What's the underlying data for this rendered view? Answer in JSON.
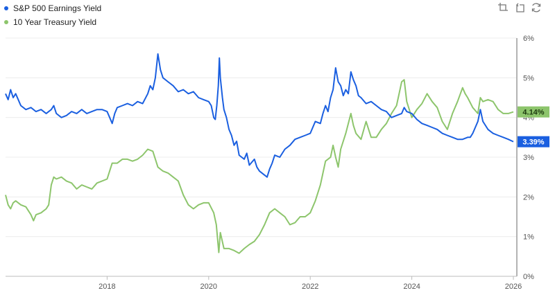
{
  "legend": {
    "items": [
      {
        "label": "S&P 500 Earnings Yield",
        "color": "#1a5fe0"
      },
      {
        "label": "10 Year Treasury Yield",
        "color": "#8dc56c"
      }
    ]
  },
  "toolbar": {
    "icons": [
      "zoom-in-icon",
      "zoom-reset-icon",
      "refresh-icon"
    ]
  },
  "badges": {
    "treasury": {
      "text": "4.14%",
      "bg": "#8dc56c",
      "fg": "#1d3a10"
    },
    "earnings": {
      "text": "3.39%",
      "bg": "#1a5fe0",
      "fg": "#ffffff"
    }
  },
  "chart_data": {
    "type": "line",
    "title": "",
    "xlabel": "",
    "ylabel": "",
    "x_ticks": [
      "2018",
      "2020",
      "2022",
      "2024",
      "2026"
    ],
    "y_ticks": [
      "0%",
      "1%",
      "2%",
      "3%",
      "4%",
      "5%",
      "6%"
    ],
    "xlim": [
      2016.0,
      2026.0
    ],
    "ylim": [
      0,
      6
    ],
    "grid": true,
    "legend_position": "top-left",
    "y_axis_position": "right",
    "series": [
      {
        "name": "S&P 500 Earnings Yield",
        "color": "#1a5fe0",
        "last_value": "3.39%",
        "points": [
          [
            2016.0,
            4.6
          ],
          [
            2016.05,
            4.45
          ],
          [
            2016.1,
            4.7
          ],
          [
            2016.15,
            4.5
          ],
          [
            2016.2,
            4.6
          ],
          [
            2016.3,
            4.3
          ],
          [
            2016.4,
            4.2
          ],
          [
            2016.5,
            4.25
          ],
          [
            2016.6,
            4.15
          ],
          [
            2016.7,
            4.2
          ],
          [
            2016.8,
            4.1
          ],
          [
            2016.9,
            4.2
          ],
          [
            2016.95,
            4.3
          ],
          [
            2017.0,
            4.1
          ],
          [
            2017.1,
            4.0
          ],
          [
            2017.2,
            4.05
          ],
          [
            2017.3,
            4.15
          ],
          [
            2017.4,
            4.1
          ],
          [
            2017.5,
            4.2
          ],
          [
            2017.6,
            4.1
          ],
          [
            2017.7,
            4.15
          ],
          [
            2017.8,
            4.2
          ],
          [
            2017.9,
            4.2
          ],
          [
            2018.0,
            4.15
          ],
          [
            2018.05,
            4.0
          ],
          [
            2018.1,
            3.85
          ],
          [
            2018.15,
            4.1
          ],
          [
            2018.2,
            4.25
          ],
          [
            2018.3,
            4.3
          ],
          [
            2018.4,
            4.35
          ],
          [
            2018.5,
            4.3
          ],
          [
            2018.6,
            4.4
          ],
          [
            2018.7,
            4.35
          ],
          [
            2018.8,
            4.6
          ],
          [
            2018.85,
            4.8
          ],
          [
            2018.9,
            4.7
          ],
          [
            2018.95,
            5.0
          ],
          [
            2019.0,
            5.6
          ],
          [
            2019.05,
            5.2
          ],
          [
            2019.1,
            5.0
          ],
          [
            2019.2,
            4.9
          ],
          [
            2019.3,
            4.8
          ],
          [
            2019.4,
            4.65
          ],
          [
            2019.5,
            4.7
          ],
          [
            2019.6,
            4.6
          ],
          [
            2019.7,
            4.65
          ],
          [
            2019.8,
            4.5
          ],
          [
            2019.9,
            4.45
          ],
          [
            2020.0,
            4.4
          ],
          [
            2020.05,
            4.3
          ],
          [
            2020.1,
            4.0
          ],
          [
            2020.13,
            3.95
          ],
          [
            2020.16,
            4.3
          ],
          [
            2020.19,
            4.8
          ],
          [
            2020.21,
            5.5
          ],
          [
            2020.23,
            5.0
          ],
          [
            2020.27,
            4.5
          ],
          [
            2020.3,
            4.2
          ],
          [
            2020.35,
            4.0
          ],
          [
            2020.4,
            3.7
          ],
          [
            2020.45,
            3.55
          ],
          [
            2020.5,
            3.3
          ],
          [
            2020.55,
            3.4
          ],
          [
            2020.6,
            3.05
          ],
          [
            2020.7,
            2.95
          ],
          [
            2020.75,
            3.1
          ],
          [
            2020.8,
            2.8
          ],
          [
            2020.9,
            2.95
          ],
          [
            2020.95,
            2.75
          ],
          [
            2021.0,
            2.65
          ],
          [
            2021.1,
            2.55
          ],
          [
            2021.15,
            2.5
          ],
          [
            2021.2,
            2.7
          ],
          [
            2021.25,
            2.85
          ],
          [
            2021.3,
            3.05
          ],
          [
            2021.4,
            3.0
          ],
          [
            2021.5,
            3.2
          ],
          [
            2021.6,
            3.3
          ],
          [
            2021.7,
            3.45
          ],
          [
            2021.8,
            3.5
          ],
          [
            2021.9,
            3.55
          ],
          [
            2022.0,
            3.6
          ],
          [
            2022.1,
            3.9
          ],
          [
            2022.2,
            3.85
          ],
          [
            2022.25,
            4.1
          ],
          [
            2022.3,
            4.3
          ],
          [
            2022.35,
            4.15
          ],
          [
            2022.4,
            4.5
          ],
          [
            2022.45,
            4.7
          ],
          [
            2022.5,
            5.25
          ],
          [
            2022.55,
            4.9
          ],
          [
            2022.6,
            4.8
          ],
          [
            2022.65,
            4.55
          ],
          [
            2022.7,
            4.7
          ],
          [
            2022.75,
            4.6
          ],
          [
            2022.8,
            5.15
          ],
          [
            2022.85,
            4.95
          ],
          [
            2022.9,
            4.8
          ],
          [
            2022.95,
            4.55
          ],
          [
            2023.0,
            4.5
          ],
          [
            2023.1,
            4.35
          ],
          [
            2023.2,
            4.4
          ],
          [
            2023.3,
            4.3
          ],
          [
            2023.4,
            4.2
          ],
          [
            2023.5,
            4.15
          ],
          [
            2023.6,
            4.0
          ],
          [
            2023.7,
            4.05
          ],
          [
            2023.8,
            4.1
          ],
          [
            2023.85,
            4.25
          ],
          [
            2023.9,
            4.15
          ],
          [
            2024.0,
            4.1
          ],
          [
            2024.1,
            3.95
          ],
          [
            2024.2,
            3.85
          ],
          [
            2024.3,
            3.8
          ],
          [
            2024.4,
            3.75
          ],
          [
            2024.5,
            3.7
          ],
          [
            2024.6,
            3.6
          ],
          [
            2024.7,
            3.55
          ],
          [
            2024.8,
            3.5
          ],
          [
            2024.9,
            3.45
          ],
          [
            2025.0,
            3.45
          ],
          [
            2025.1,
            3.5
          ],
          [
            2025.15,
            3.5
          ],
          [
            2025.2,
            3.6
          ],
          [
            2025.3,
            3.9
          ],
          [
            2025.35,
            4.2
          ],
          [
            2025.4,
            3.9
          ],
          [
            2025.5,
            3.7
          ],
          [
            2025.6,
            3.6
          ],
          [
            2025.7,
            3.55
          ],
          [
            2025.8,
            3.5
          ],
          [
            2025.9,
            3.45
          ],
          [
            2026.0,
            3.39
          ]
        ]
      },
      {
        "name": "10 Year Treasury Yield",
        "color": "#8dc56c",
        "last_value": "4.14%",
        "points": [
          [
            2016.0,
            2.05
          ],
          [
            2016.05,
            1.8
          ],
          [
            2016.1,
            1.7
          ],
          [
            2016.15,
            1.85
          ],
          [
            2016.2,
            1.9
          ],
          [
            2016.3,
            1.8
          ],
          [
            2016.4,
            1.75
          ],
          [
            2016.5,
            1.55
          ],
          [
            2016.55,
            1.4
          ],
          [
            2016.6,
            1.55
          ],
          [
            2016.7,
            1.6
          ],
          [
            2016.8,
            1.7
          ],
          [
            2016.85,
            1.8
          ],
          [
            2016.9,
            2.3
          ],
          [
            2016.95,
            2.5
          ],
          [
            2017.0,
            2.45
          ],
          [
            2017.1,
            2.5
          ],
          [
            2017.2,
            2.4
          ],
          [
            2017.3,
            2.35
          ],
          [
            2017.4,
            2.2
          ],
          [
            2017.5,
            2.3
          ],
          [
            2017.6,
            2.25
          ],
          [
            2017.7,
            2.2
          ],
          [
            2017.8,
            2.35
          ],
          [
            2017.9,
            2.4
          ],
          [
            2018.0,
            2.45
          ],
          [
            2018.1,
            2.85
          ],
          [
            2018.2,
            2.85
          ],
          [
            2018.3,
            2.95
          ],
          [
            2018.4,
            2.95
          ],
          [
            2018.5,
            2.9
          ],
          [
            2018.6,
            2.95
          ],
          [
            2018.7,
            3.05
          ],
          [
            2018.8,
            3.2
          ],
          [
            2018.9,
            3.15
          ],
          [
            2019.0,
            2.75
          ],
          [
            2019.1,
            2.65
          ],
          [
            2019.2,
            2.6
          ],
          [
            2019.3,
            2.5
          ],
          [
            2019.4,
            2.4
          ],
          [
            2019.5,
            2.05
          ],
          [
            2019.6,
            1.8
          ],
          [
            2019.7,
            1.7
          ],
          [
            2019.8,
            1.8
          ],
          [
            2019.9,
            1.85
          ],
          [
            2020.0,
            1.85
          ],
          [
            2020.1,
            1.6
          ],
          [
            2020.15,
            1.3
          ],
          [
            2020.2,
            0.6
          ],
          [
            2020.23,
            1.1
          ],
          [
            2020.3,
            0.7
          ],
          [
            2020.4,
            0.7
          ],
          [
            2020.5,
            0.65
          ],
          [
            2020.6,
            0.58
          ],
          [
            2020.7,
            0.7
          ],
          [
            2020.8,
            0.8
          ],
          [
            2020.9,
            0.88
          ],
          [
            2021.0,
            1.05
          ],
          [
            2021.1,
            1.3
          ],
          [
            2021.2,
            1.6
          ],
          [
            2021.3,
            1.7
          ],
          [
            2021.4,
            1.6
          ],
          [
            2021.5,
            1.5
          ],
          [
            2021.6,
            1.3
          ],
          [
            2021.7,
            1.35
          ],
          [
            2021.8,
            1.5
          ],
          [
            2021.9,
            1.5
          ],
          [
            2022.0,
            1.6
          ],
          [
            2022.1,
            1.9
          ],
          [
            2022.2,
            2.3
          ],
          [
            2022.3,
            2.9
          ],
          [
            2022.4,
            3.0
          ],
          [
            2022.45,
            3.3
          ],
          [
            2022.5,
            3.0
          ],
          [
            2022.55,
            2.75
          ],
          [
            2022.6,
            3.2
          ],
          [
            2022.7,
            3.6
          ],
          [
            2022.8,
            4.1
          ],
          [
            2022.85,
            3.8
          ],
          [
            2022.9,
            3.6
          ],
          [
            2023.0,
            3.45
          ],
          [
            2023.1,
            3.9
          ],
          [
            2023.2,
            3.5
          ],
          [
            2023.3,
            3.5
          ],
          [
            2023.4,
            3.7
          ],
          [
            2023.5,
            3.85
          ],
          [
            2023.6,
            4.1
          ],
          [
            2023.7,
            4.3
          ],
          [
            2023.8,
            4.9
          ],
          [
            2023.85,
            4.95
          ],
          [
            2023.9,
            4.4
          ],
          [
            2024.0,
            4.0
          ],
          [
            2024.1,
            4.2
          ],
          [
            2024.2,
            4.35
          ],
          [
            2024.3,
            4.6
          ],
          [
            2024.4,
            4.4
          ],
          [
            2024.5,
            4.25
          ],
          [
            2024.6,
            3.9
          ],
          [
            2024.7,
            3.7
          ],
          [
            2024.8,
            4.1
          ],
          [
            2024.9,
            4.4
          ],
          [
            2025.0,
            4.75
          ],
          [
            2025.05,
            4.6
          ],
          [
            2025.1,
            4.5
          ],
          [
            2025.2,
            4.25
          ],
          [
            2025.3,
            4.1
          ],
          [
            2025.35,
            4.5
          ],
          [
            2025.4,
            4.4
          ],
          [
            2025.5,
            4.45
          ],
          [
            2025.6,
            4.4
          ],
          [
            2025.7,
            4.2
          ],
          [
            2025.8,
            4.1
          ],
          [
            2025.9,
            4.1
          ],
          [
            2026.0,
            4.14
          ]
        ]
      }
    ]
  }
}
